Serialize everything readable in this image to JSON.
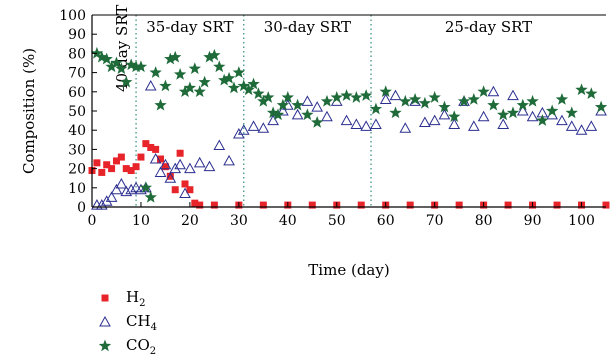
{
  "chart_data": {
    "type": "scatter",
    "ylabel": "Composition (%)",
    "xlabel": "Time (day)",
    "xlim": [
      0,
      105
    ],
    "ylim": [
      0,
      100
    ],
    "x_ticks": [
      "0",
      "10",
      "20",
      "30",
      "40",
      "50",
      "60",
      "70",
      "80",
      "90",
      "100"
    ],
    "y_ticks": [
      "0",
      "10",
      "20",
      "30",
      "40",
      "50",
      "60",
      "70",
      "80",
      "90",
      "100"
    ],
    "phases": [
      {
        "label": "40-day SRT",
        "start": 0,
        "end": 9
      },
      {
        "label": "35-day SRT",
        "start": 9,
        "end": 31
      },
      {
        "label": "30-day SRT",
        "start": 31,
        "end": 57
      },
      {
        "label": "25-day SRT",
        "start": 57,
        "end": 105
      }
    ],
    "series": [
      {
        "name": "H",
        "subscript": "2",
        "marker": "square",
        "color": "#e8242b",
        "x": [
          0,
          1,
          2,
          3,
          4,
          5,
          6,
          7,
          8,
          9,
          10,
          11,
          12,
          13,
          14,
          15,
          16,
          17,
          18,
          19,
          20,
          21,
          22,
          25,
          30,
          35,
          40,
          45,
          50,
          55,
          60,
          65,
          70,
          75,
          80,
          85,
          90,
          95,
          100,
          105
        ],
        "y": [
          19,
          23,
          18,
          22,
          20,
          24,
          26,
          20,
          19,
          21,
          26,
          33,
          31,
          30,
          25,
          21,
          16,
          9,
          28,
          12,
          9,
          2,
          1,
          1,
          1,
          1,
          1,
          1,
          1,
          1,
          1,
          1,
          1,
          1,
          1,
          1,
          1,
          1,
          1,
          1
        ]
      },
      {
        "name": "CH",
        "subscript": "4",
        "marker": "triangle",
        "color": "#2b2f8f",
        "x": [
          1,
          2,
          3,
          4,
          5,
          6,
          7,
          8,
          9,
          10,
          11,
          12,
          13,
          14,
          15,
          16,
          17,
          18,
          19,
          20,
          22,
          24,
          26,
          28,
          30,
          31,
          33,
          35,
          37,
          39,
          40,
          42,
          44,
          46,
          48,
          50,
          52,
          54,
          56,
          58,
          60,
          62,
          64,
          66,
          68,
          70,
          72,
          74,
          76,
          78,
          80,
          82,
          84,
          86,
          88,
          90,
          92,
          94,
          96,
          98,
          100,
          102,
          104
        ],
        "y": [
          1,
          1,
          3,
          5,
          9,
          12,
          8,
          9,
          10,
          9,
          10,
          63,
          25,
          18,
          22,
          15,
          20,
          22,
          7,
          20,
          23,
          21,
          32,
          24,
          38,
          40,
          42,
          41,
          45,
          50,
          53,
          48,
          55,
          52,
          47,
          55,
          45,
          43,
          42,
          43,
          56,
          58,
          41,
          55,
          44,
          45,
          48,
          43,
          55,
          42,
          47,
          60,
          43,
          58,
          50,
          47,
          49,
          48,
          45,
          42,
          40,
          42,
          50
        ]
      },
      {
        "name": "CO",
        "subscript": "2",
        "marker": "star",
        "color": "#1f6b3a",
        "x": [
          1,
          2,
          3,
          4,
          5,
          6,
          7,
          8,
          9,
          10,
          11,
          12,
          13,
          14,
          15,
          16,
          17,
          18,
          19,
          20,
          21,
          22,
          23,
          24,
          25,
          26,
          27,
          28,
          29,
          30,
          31,
          32,
          33,
          34,
          35,
          36,
          37,
          38,
          39,
          40,
          42,
          44,
          46,
          48,
          50,
          52,
          54,
          56,
          58,
          60,
          62,
          64,
          66,
          68,
          70,
          72,
          74,
          76,
          78,
          80,
          82,
          84,
          86,
          88,
          90,
          92,
          94,
          96,
          98,
          100,
          102,
          104
        ],
        "y": [
          80,
          78,
          77,
          73,
          75,
          72,
          65,
          74,
          73,
          73,
          10,
          5,
          70,
          53,
          63,
          77,
          78,
          69,
          60,
          62,
          72,
          60,
          65,
          78,
          79,
          73,
          66,
          67,
          62,
          70,
          63,
          61,
          64,
          59,
          55,
          57,
          49,
          48,
          53,
          57,
          53,
          48,
          44,
          55,
          57,
          58,
          57,
          58,
          51,
          60,
          49,
          55,
          56,
          54,
          57,
          52,
          47,
          55,
          56,
          60,
          53,
          48,
          49,
          53,
          55,
          45,
          50,
          56,
          49,
          61,
          59,
          52
        ]
      }
    ]
  }
}
